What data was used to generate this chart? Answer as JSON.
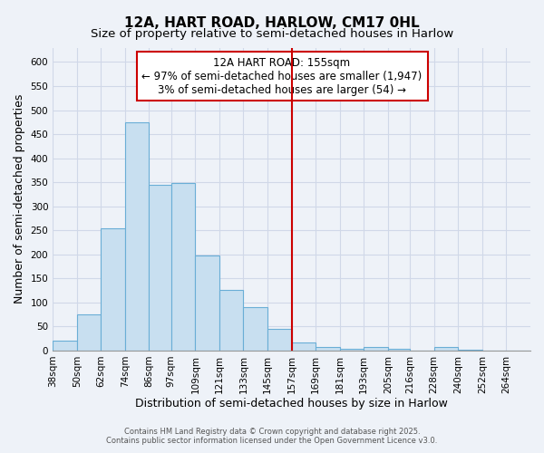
{
  "title": "12A, HART ROAD, HARLOW, CM17 0HL",
  "subtitle": "Size of property relative to semi-detached houses in Harlow",
  "xlabel": "Distribution of semi-detached houses by size in Harlow",
  "ylabel": "Number of semi-detached properties",
  "bar_edges": [
    38,
    50,
    62,
    74,
    86,
    97,
    109,
    121,
    133,
    145,
    157,
    169,
    181,
    193,
    205,
    216,
    228,
    240,
    252,
    264,
    276
  ],
  "bar_heights": [
    20,
    75,
    255,
    475,
    345,
    348,
    198,
    127,
    90,
    46,
    17,
    8,
    3,
    8,
    3,
    0,
    7,
    2,
    0,
    0
  ],
  "bar_color": "#c8dff0",
  "bar_edge_color": "#6aaed6",
  "vline_x": 157,
  "vline_color": "#cc0000",
  "annotation_title": "12A HART ROAD: 155sqm",
  "annotation_line1": "← 97% of semi-detached houses are smaller (1,947)",
  "annotation_line2": "3% of semi-detached houses are larger (54) →",
  "annotation_box_edge_color": "#cc0000",
  "ylim": [
    0,
    630
  ],
  "yticks": [
    0,
    50,
    100,
    150,
    200,
    250,
    300,
    350,
    400,
    450,
    500,
    550,
    600
  ],
  "footnote1": "Contains HM Land Registry data © Crown copyright and database right 2025.",
  "footnote2": "Contains public sector information licensed under the Open Government Licence v3.0.",
  "bg_color": "#eef2f8",
  "grid_color": "#d0d8e8",
  "title_fontsize": 11,
  "subtitle_fontsize": 9.5,
  "axis_label_fontsize": 9,
  "tick_fontsize": 7.5,
  "annotation_fontsize": 8.5,
  "footnote_fontsize": 6.0
}
